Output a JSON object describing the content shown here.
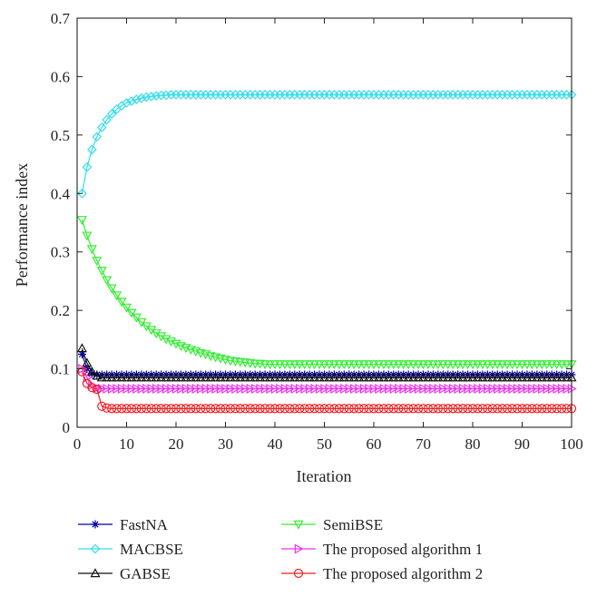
{
  "chart_data": {
    "type": "line",
    "title": "",
    "xlabel": "Iteration",
    "ylabel": "Performance index",
    "xlim": [
      0,
      100
    ],
    "ylim": [
      0,
      0.7
    ],
    "xticks": [
      0,
      10,
      20,
      30,
      40,
      50,
      60,
      70,
      80,
      90,
      100
    ],
    "yticks": [
      0,
      0.1,
      0.2,
      0.3,
      0.4,
      0.5,
      0.6,
      0.7
    ],
    "ytick_labels": [
      "0",
      "0.1",
      "0.2",
      "0.3",
      "0.4",
      "0.5",
      "0.6",
      "0.7"
    ],
    "grid": false,
    "legend_position": "bottom",
    "x": [
      1,
      2,
      3,
      4,
      5,
      6,
      7,
      8,
      9,
      10,
      11,
      12,
      13,
      14,
      15,
      16,
      17,
      18,
      19,
      20,
      21,
      22,
      23,
      24,
      25,
      26,
      27,
      28,
      29,
      30,
      31,
      32,
      33,
      34,
      35,
      36,
      37,
      38,
      39,
      40,
      41,
      42,
      43,
      44,
      45,
      46,
      47,
      48,
      49,
      50,
      51,
      52,
      53,
      54,
      55,
      56,
      57,
      58,
      59,
      60,
      61,
      62,
      63,
      64,
      65,
      66,
      67,
      68,
      69,
      70,
      71,
      72,
      73,
      74,
      75,
      76,
      77,
      78,
      79,
      80,
      81,
      82,
      83,
      84,
      85,
      86,
      87,
      88,
      89,
      90,
      91,
      92,
      93,
      94,
      95,
      96,
      97,
      98,
      99,
      100
    ],
    "series": [
      {
        "name": "FastNA",
        "color": "#0000aa",
        "marker": "star",
        "values": [
          0.125,
          0.1,
          0.092,
          0.09,
          0.09,
          0.09,
          0.09,
          0.09,
          0.09,
          0.09,
          0.09,
          0.09,
          0.09,
          0.09,
          0.09,
          0.09,
          0.09,
          0.09,
          0.09,
          0.09,
          0.09,
          0.09,
          0.09,
          0.09,
          0.09,
          0.09,
          0.09,
          0.09,
          0.09,
          0.09,
          0.09,
          0.09,
          0.09,
          0.09,
          0.09,
          0.09,
          0.09,
          0.09,
          0.09,
          0.09,
          0.09,
          0.09,
          0.09,
          0.09,
          0.09,
          0.09,
          0.09,
          0.09,
          0.09,
          0.09,
          0.09,
          0.09,
          0.09,
          0.09,
          0.09,
          0.09,
          0.09,
          0.09,
          0.09,
          0.09,
          0.09,
          0.09,
          0.09,
          0.09,
          0.09,
          0.09,
          0.09,
          0.09,
          0.09,
          0.09,
          0.09,
          0.09,
          0.09,
          0.09,
          0.09,
          0.09,
          0.09,
          0.09,
          0.09,
          0.09,
          0.09,
          0.09,
          0.09,
          0.09,
          0.09,
          0.09,
          0.09,
          0.09,
          0.09,
          0.09,
          0.09,
          0.09,
          0.09,
          0.09,
          0.09,
          0.09,
          0.09,
          0.09,
          0.09,
          0.09
        ]
      },
      {
        "name": "MACBSE",
        "color": "#33ddee",
        "marker": "diamond",
        "values": [
          0.4,
          0.445,
          0.475,
          0.497,
          0.513,
          0.526,
          0.536,
          0.544,
          0.55,
          0.555,
          0.558,
          0.561,
          0.563,
          0.565,
          0.566,
          0.567,
          0.568,
          0.568,
          0.569,
          0.569,
          0.569,
          0.569,
          0.569,
          0.569,
          0.569,
          0.569,
          0.569,
          0.569,
          0.569,
          0.569,
          0.569,
          0.569,
          0.569,
          0.569,
          0.569,
          0.569,
          0.569,
          0.569,
          0.569,
          0.569,
          0.569,
          0.569,
          0.569,
          0.569,
          0.569,
          0.569,
          0.569,
          0.569,
          0.569,
          0.569,
          0.569,
          0.569,
          0.569,
          0.569,
          0.569,
          0.569,
          0.569,
          0.569,
          0.569,
          0.569,
          0.569,
          0.569,
          0.569,
          0.569,
          0.569,
          0.569,
          0.569,
          0.569,
          0.569,
          0.569,
          0.569,
          0.569,
          0.569,
          0.569,
          0.569,
          0.569,
          0.569,
          0.569,
          0.569,
          0.569,
          0.569,
          0.569,
          0.569,
          0.569,
          0.569,
          0.569,
          0.569,
          0.569,
          0.569,
          0.569,
          0.569,
          0.569,
          0.569,
          0.569,
          0.569,
          0.569,
          0.569,
          0.569,
          0.569,
          0.569
        ]
      },
      {
        "name": "GABSE",
        "color": "#111111",
        "marker": "triangle-up",
        "values": [
          0.135,
          0.11,
          0.095,
          0.088,
          0.085,
          0.085,
          0.085,
          0.085,
          0.085,
          0.085,
          0.085,
          0.085,
          0.085,
          0.085,
          0.085,
          0.085,
          0.085,
          0.085,
          0.085,
          0.085,
          0.085,
          0.085,
          0.085,
          0.085,
          0.085,
          0.085,
          0.085,
          0.085,
          0.085,
          0.085,
          0.085,
          0.085,
          0.085,
          0.085,
          0.085,
          0.085,
          0.085,
          0.085,
          0.085,
          0.085,
          0.085,
          0.085,
          0.085,
          0.085,
          0.085,
          0.085,
          0.085,
          0.085,
          0.085,
          0.085,
          0.085,
          0.085,
          0.085,
          0.085,
          0.085,
          0.085,
          0.085,
          0.085,
          0.085,
          0.085,
          0.085,
          0.085,
          0.085,
          0.085,
          0.085,
          0.085,
          0.085,
          0.085,
          0.085,
          0.085,
          0.085,
          0.085,
          0.085,
          0.085,
          0.085,
          0.085,
          0.085,
          0.085,
          0.085,
          0.085,
          0.085,
          0.085,
          0.085,
          0.085,
          0.085,
          0.085,
          0.085,
          0.085,
          0.085,
          0.085,
          0.085,
          0.085,
          0.085,
          0.085,
          0.085,
          0.085,
          0.085,
          0.085,
          0.085,
          0.085
        ]
      },
      {
        "name": "SemiBSE",
        "color": "#33ee33",
        "marker": "triangle-down",
        "values": [
          0.355,
          0.328,
          0.305,
          0.285,
          0.268,
          0.252,
          0.238,
          0.226,
          0.215,
          0.205,
          0.196,
          0.188,
          0.18,
          0.173,
          0.167,
          0.161,
          0.156,
          0.151,
          0.147,
          0.143,
          0.139,
          0.136,
          0.133,
          0.13,
          0.127,
          0.125,
          0.122,
          0.12,
          0.118,
          0.116,
          0.114,
          0.113,
          0.112,
          0.111,
          0.11,
          0.109,
          0.109,
          0.108,
          0.108,
          0.108,
          0.108,
          0.108,
          0.108,
          0.108,
          0.108,
          0.108,
          0.108,
          0.108,
          0.108,
          0.108,
          0.108,
          0.108,
          0.108,
          0.108,
          0.108,
          0.108,
          0.108,
          0.108,
          0.108,
          0.108,
          0.108,
          0.108,
          0.108,
          0.108,
          0.108,
          0.108,
          0.108,
          0.108,
          0.108,
          0.108,
          0.108,
          0.108,
          0.108,
          0.108,
          0.108,
          0.108,
          0.108,
          0.108,
          0.108,
          0.108,
          0.108,
          0.108,
          0.108,
          0.108,
          0.108,
          0.108,
          0.108,
          0.108,
          0.108,
          0.108,
          0.108,
          0.108,
          0.108,
          0.108,
          0.108,
          0.108,
          0.108,
          0.108,
          0.108,
          0.108
        ]
      },
      {
        "name": "The proposed algorithm 1",
        "color": "#ee33ee",
        "marker": "triangle-right",
        "values": [
          0.1,
          0.085,
          0.072,
          0.067,
          0.066,
          0.066,
          0.066,
          0.066,
          0.066,
          0.066,
          0.066,
          0.066,
          0.066,
          0.066,
          0.066,
          0.066,
          0.066,
          0.066,
          0.066,
          0.066,
          0.066,
          0.066,
          0.066,
          0.066,
          0.066,
          0.066,
          0.066,
          0.066,
          0.066,
          0.066,
          0.066,
          0.066,
          0.066,
          0.066,
          0.066,
          0.066,
          0.066,
          0.066,
          0.066,
          0.066,
          0.066,
          0.066,
          0.066,
          0.066,
          0.066,
          0.066,
          0.066,
          0.066,
          0.066,
          0.066,
          0.066,
          0.066,
          0.066,
          0.066,
          0.066,
          0.066,
          0.066,
          0.066,
          0.066,
          0.066,
          0.066,
          0.066,
          0.066,
          0.066,
          0.066,
          0.066,
          0.066,
          0.066,
          0.066,
          0.066,
          0.066,
          0.066,
          0.066,
          0.066,
          0.066,
          0.066,
          0.066,
          0.066,
          0.066,
          0.066,
          0.066,
          0.066,
          0.066,
          0.066,
          0.066,
          0.066,
          0.066,
          0.066,
          0.066,
          0.066,
          0.066,
          0.066,
          0.066,
          0.066,
          0.066,
          0.066,
          0.066,
          0.066,
          0.066,
          0.066
        ]
      },
      {
        "name": "The proposed algorithm 2",
        "color": "#ee2222",
        "marker": "circle",
        "values": [
          0.095,
          0.075,
          0.068,
          0.065,
          0.036,
          0.033,
          0.032,
          0.032,
          0.032,
          0.032,
          0.032,
          0.032,
          0.032,
          0.032,
          0.032,
          0.032,
          0.032,
          0.032,
          0.032,
          0.032,
          0.032,
          0.032,
          0.032,
          0.032,
          0.032,
          0.032,
          0.032,
          0.032,
          0.032,
          0.032,
          0.032,
          0.032,
          0.032,
          0.032,
          0.032,
          0.032,
          0.032,
          0.032,
          0.032,
          0.032,
          0.032,
          0.032,
          0.032,
          0.032,
          0.032,
          0.032,
          0.032,
          0.032,
          0.032,
          0.032,
          0.032,
          0.032,
          0.032,
          0.032,
          0.032,
          0.032,
          0.032,
          0.032,
          0.032,
          0.032,
          0.032,
          0.032,
          0.032,
          0.032,
          0.032,
          0.032,
          0.032,
          0.032,
          0.032,
          0.032,
          0.032,
          0.032,
          0.032,
          0.032,
          0.032,
          0.032,
          0.032,
          0.032,
          0.032,
          0.032,
          0.032,
          0.032,
          0.032,
          0.032,
          0.032,
          0.032,
          0.032,
          0.032,
          0.032,
          0.032,
          0.032,
          0.032,
          0.032,
          0.032,
          0.032,
          0.032,
          0.032,
          0.032,
          0.032,
          0.032
        ]
      }
    ]
  }
}
